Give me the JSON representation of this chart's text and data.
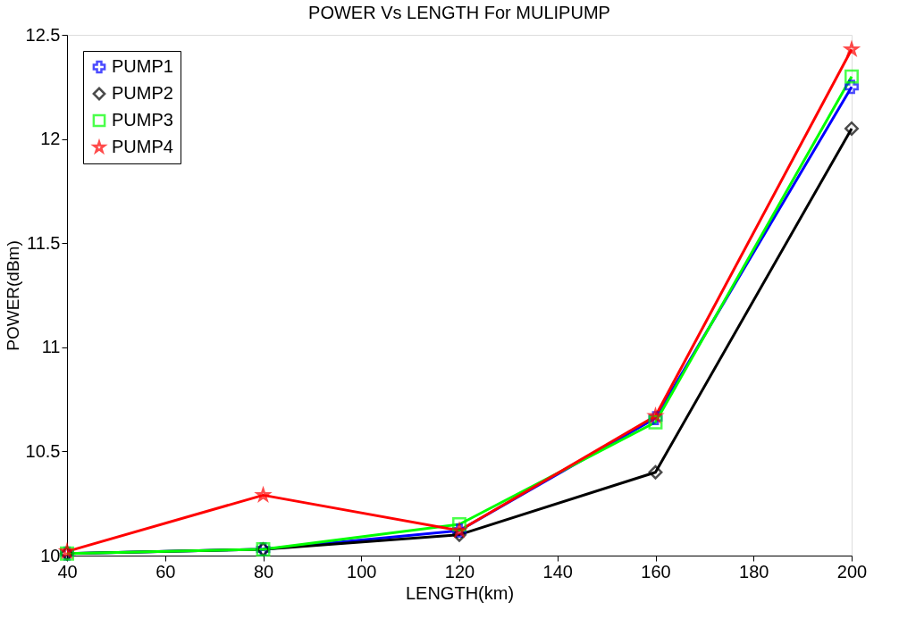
{
  "chart_data": {
    "type": "line",
    "title": "POWER Vs LENGTH For MULIPUMP",
    "xlabel": "LENGTH(km)",
    "ylabel": "POWER(dBm)",
    "x": [
      40,
      80,
      120,
      160,
      200
    ],
    "series": [
      {
        "name": "PUMP1",
        "color": "#0000ff",
        "marker": "cross",
        "values": [
          10.01,
          10.03,
          10.12,
          10.66,
          12.25
        ]
      },
      {
        "name": "PUMP2",
        "color": "#000000",
        "marker": "diamond",
        "values": [
          10.01,
          10.03,
          10.1,
          10.4,
          12.05
        ]
      },
      {
        "name": "PUMP3",
        "color": "#00ff00",
        "marker": "square",
        "values": [
          10.01,
          10.03,
          10.15,
          10.64,
          12.3
        ]
      },
      {
        "name": "PUMP4",
        "color": "#ff0000",
        "marker": "star",
        "values": [
          10.02,
          10.29,
          10.12,
          10.67,
          12.43
        ]
      }
    ],
    "xlim": [
      40,
      200
    ],
    "xticks": [
      40,
      60,
      80,
      100,
      120,
      140,
      160,
      180,
      200
    ],
    "ylim": [
      10,
      12.5
    ],
    "yticks": [
      10,
      10.5,
      11,
      11.5,
      12,
      12.5
    ],
    "grid": false,
    "legend": "top left",
    "line_style": "solid"
  }
}
